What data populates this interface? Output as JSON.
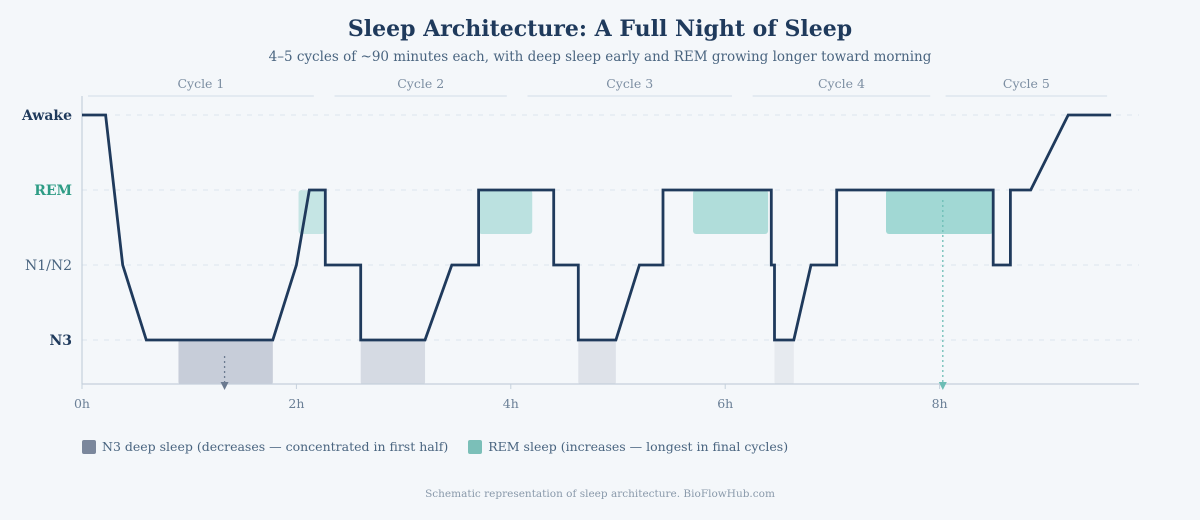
{
  "chart_data": {
    "type": "line",
    "title": "Sleep Architecture: A Full Night of Sleep",
    "subtitle": "4–5 cycles of ~90 minutes each, with deep sleep early and REM growing longer toward morning",
    "x_ticks": [
      "0h",
      "2h",
      "4h",
      "6h",
      "8h"
    ],
    "x_tick_values": [
      0,
      2,
      4,
      6,
      8
    ],
    "xlim": [
      0,
      9.85
    ],
    "stages": [
      "Awake",
      "REM",
      "N1/N2",
      "N3"
    ],
    "stage_levels": {
      "Awake": 3,
      "REM": 2,
      "N1/N2": 1,
      "N3": 0
    },
    "cycles": [
      {
        "label": "Cycle 1",
        "start": 0.0,
        "end": 2.2
      },
      {
        "label": "Cycle 2",
        "start": 2.3,
        "end": 4.0
      },
      {
        "label": "Cycle 3",
        "start": 4.1,
        "end": 6.1
      },
      {
        "label": "Cycle 4",
        "start": 6.2,
        "end": 7.95
      },
      {
        "label": "Cycle 5",
        "start": 8.0,
        "end": 9.6
      }
    ],
    "hypnogram": {
      "x": [
        0,
        0.22,
        0.38,
        0.6,
        1.78,
        2.0,
        2.12,
        2.27,
        2.27,
        2.6,
        2.6,
        3.2,
        3.45,
        3.7,
        3.7,
        4.4,
        4.4,
        4.63,
        4.63,
        4.98,
        5.2,
        5.42,
        5.42,
        6.43,
        6.43,
        6.46,
        6.46,
        6.64,
        6.8,
        7.04,
        7.04,
        8.5,
        8.5,
        8.66,
        8.66,
        8.85,
        9.2,
        9.6
      ],
      "y": [
        3,
        3,
        1,
        0,
        0,
        1,
        2,
        2,
        1,
        1,
        0,
        0,
        1,
        1,
        2,
        2,
        1,
        1,
        0,
        0,
        1,
        1,
        2,
        2,
        1,
        1,
        0,
        0,
        1,
        1,
        2,
        2,
        1,
        1,
        2,
        2,
        3,
        3
      ]
    },
    "n3_bands": [
      {
        "start": 0.9,
        "end": 1.78
      },
      {
        "start": 2.6,
        "end": 3.2
      },
      {
        "start": 4.63,
        "end": 4.98
      },
      {
        "start": 6.46,
        "end": 6.64
      }
    ],
    "rem_bands": [
      {
        "start": 2.02,
        "end": 2.27
      },
      {
        "start": 3.7,
        "end": 4.2
      },
      {
        "start": 5.7,
        "end": 6.4
      },
      {
        "start": 7.5,
        "end": 8.5
      }
    ],
    "markers": [
      {
        "series": "N3",
        "x": 1.33
      },
      {
        "series": "REM",
        "x": 8.03
      }
    ],
    "legend": [
      {
        "label": "N3 deep sleep (decreases — concentrated in first half)",
        "color": "#7b879c"
      },
      {
        "label": "REM sleep (increases — longest in final cycles)",
        "color": "#7bbfb8"
      }
    ],
    "legend_position": "bottom-left",
    "footnote": "Schematic representation of sleep architecture. BioFlowHub.com",
    "colors": {
      "line": "#1f3a5c",
      "n3": "#9aa3b7",
      "rem": "#8ccfca",
      "rem_label": "#2e9c85",
      "awake_label": "#1f3a5c",
      "axis": "#c5d0dc",
      "grid": "#dde5ee"
    }
  }
}
